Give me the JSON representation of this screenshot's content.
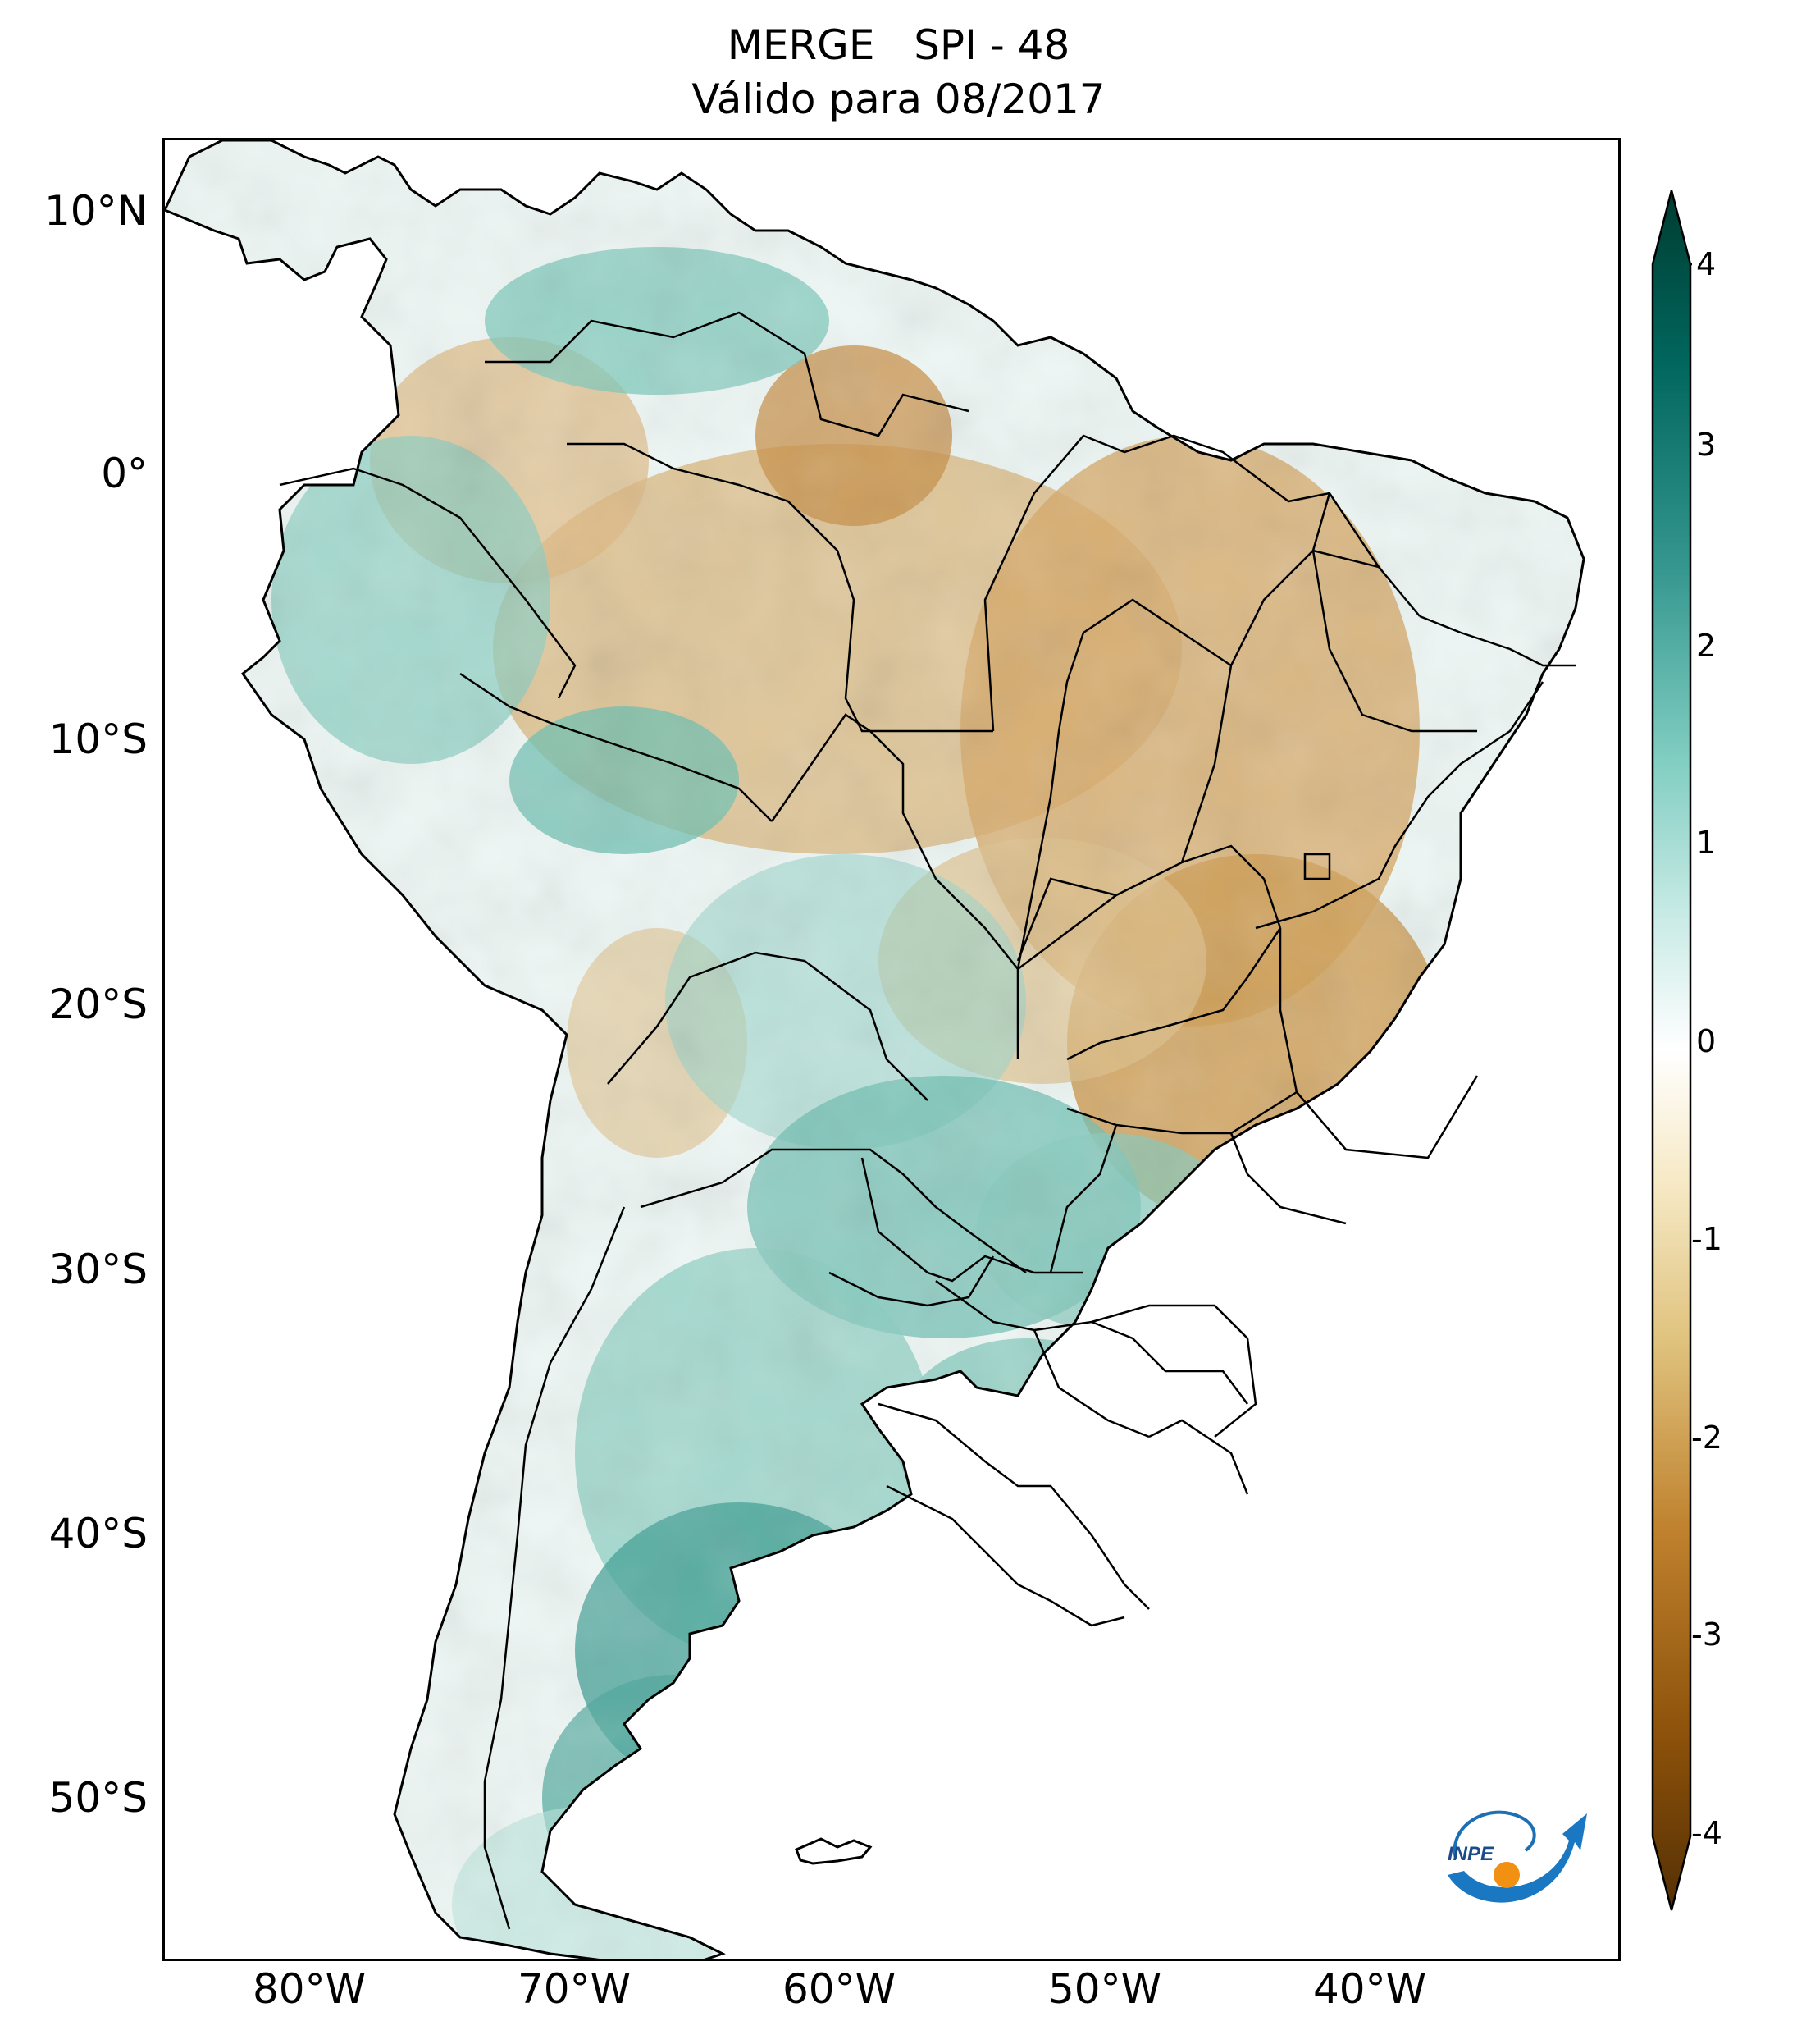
{
  "title": {
    "line1": "MERGE   SPI - 48",
    "line2": "Válido para 08/2017"
  },
  "axes": {
    "lat_ticks": [
      "10°N",
      "0°",
      "10°S",
      "20°S",
      "30°S",
      "40°S",
      "50°S"
    ],
    "lon_ticks": [
      "80°W",
      "70°W",
      "60°W",
      "50°W",
      "40°W"
    ]
  },
  "colorbar": {
    "ticks": [
      "4",
      "3",
      "2",
      "1",
      "0",
      "-1",
      "-2",
      "-3",
      "-4"
    ],
    "range": [
      -4,
      4
    ],
    "colors": [
      "#543005",
      "#8c510a",
      "#bf812d",
      "#dfc27d",
      "#f6e8c3",
      "#ffffff",
      "#c7eae5",
      "#80cdc1",
      "#35978f",
      "#01665e",
      "#003c30"
    ]
  },
  "logo": {
    "text": "INPE"
  },
  "colors": {
    "dry": "#d4a65f",
    "wet": "#5fb8a8",
    "border": "#000000"
  }
}
